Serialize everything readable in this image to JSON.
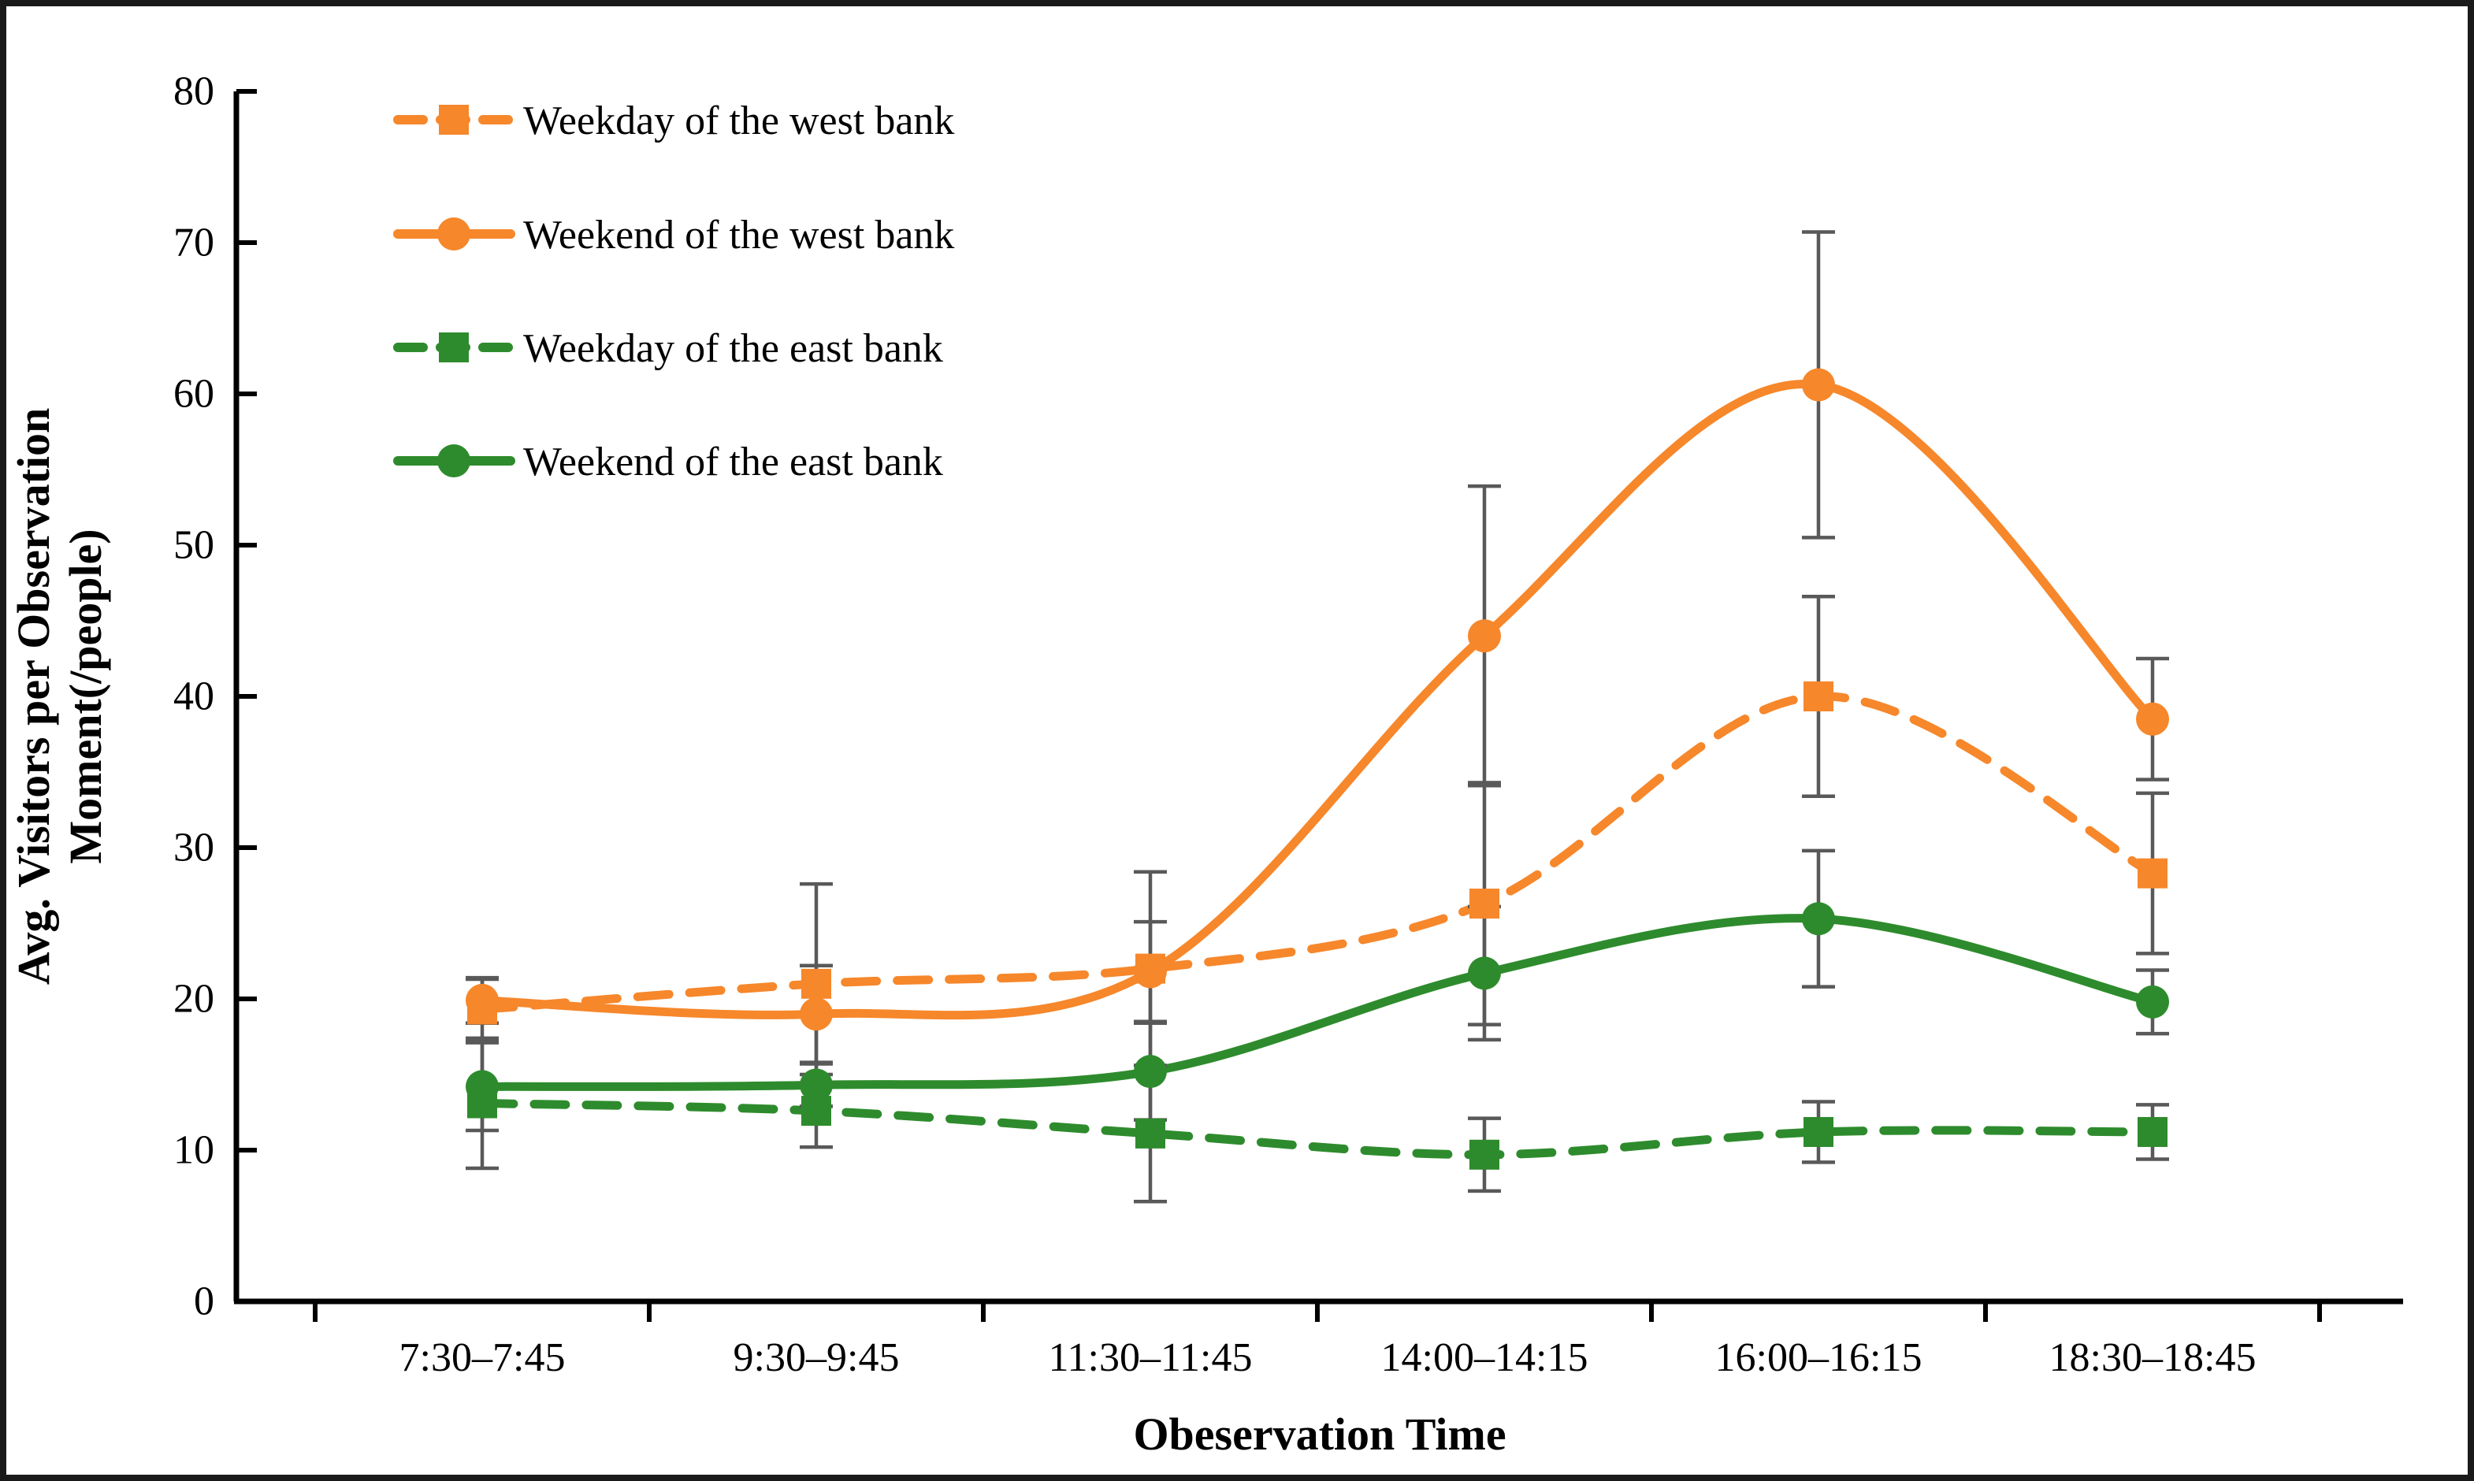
{
  "figure": {
    "background": "#ffffff",
    "border_color": "#1a1a1a",
    "error_bar_color": "#595959",
    "axis_color": "#000000"
  },
  "chart_data": {
    "type": "line",
    "title": "",
    "xlabel": "Obeservation Time",
    "ylabel_line1": "Avg. Visitors per Observation",
    "ylabel_line2": "Moment(/people)",
    "ylim": [
      0,
      80
    ],
    "yticks": [
      0,
      10,
      20,
      30,
      40,
      50,
      60,
      70,
      80
    ],
    "grid": false,
    "legend_position": "top-left",
    "categories": [
      "7:30–7:45",
      "9:30–9:45",
      "11:30–11:45",
      "14:00–14:15",
      "16:00–16:15",
      "18:30–18:45"
    ],
    "series": [
      {
        "name": "Weekday of the west bank",
        "color": "#F6872B",
        "line_style": "dashed",
        "marker": "square",
        "values": [
          19.3,
          21.0,
          22.0,
          26.3,
          40.0,
          28.3
        ],
        "errors": [
          2.0,
          6.6,
          6.4,
          8.0,
          6.6,
          5.3
        ]
      },
      {
        "name": "Weekend of the west bank",
        "color": "#F6872B",
        "line_style": "solid",
        "marker": "circle",
        "values": [
          19.9,
          19.0,
          21.8,
          44.0,
          60.6,
          38.5
        ],
        "errors": [
          1.5,
          3.2,
          3.3,
          9.9,
          10.1,
          4.0
        ]
      },
      {
        "name": "Weekday of the east bank",
        "color": "#2E8B2D",
        "line_style": "dashed",
        "marker": "square",
        "values": [
          13.1,
          12.6,
          11.1,
          9.7,
          11.2,
          11.2
        ],
        "errors": [
          4.3,
          2.4,
          4.5,
          2.4,
          2.0,
          1.8
        ]
      },
      {
        "name": "Weekend of the east bank",
        "color": "#2E8B2D",
        "line_style": "solid",
        "marker": "circle",
        "values": [
          14.2,
          14.3,
          15.2,
          21.7,
          25.3,
          19.8
        ],
        "errors": [
          2.9,
          1.4,
          3.2,
          4.4,
          4.5,
          2.1
        ]
      }
    ]
  }
}
